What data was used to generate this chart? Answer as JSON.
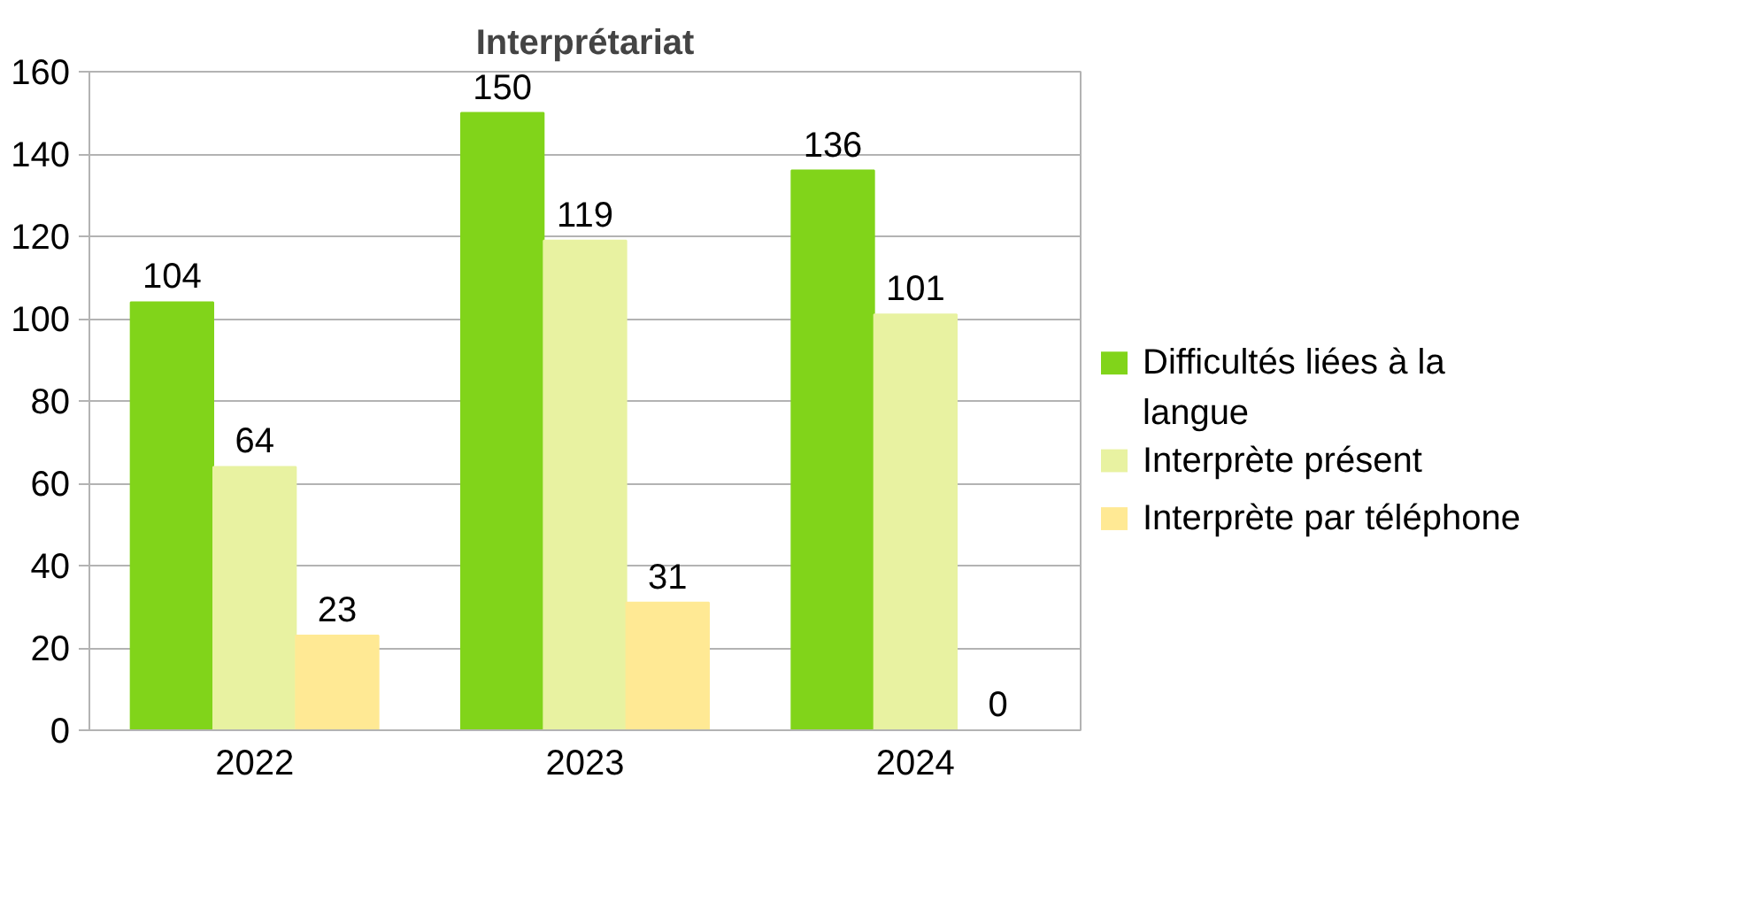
{
  "chart_data": {
    "type": "bar",
    "title": "Interprétariat",
    "categories": [
      "2022",
      "2023",
      "2024"
    ],
    "series": [
      {
        "name": "Difficultés liées à la langue",
        "color": "#81d41a",
        "values": [
          104,
          150,
          136
        ]
      },
      {
        "name": "Interprète présent",
        "color": "#e8f2a1",
        "values": [
          64,
          119,
          101
        ]
      },
      {
        "name": "Interprète par téléphone",
        "color": "#ffe994",
        "values": [
          23,
          31,
          0
        ]
      }
    ],
    "ylim": [
      0,
      160
    ],
    "yticks": [
      0,
      20,
      40,
      60,
      80,
      100,
      120,
      140,
      160
    ],
    "grid": "y",
    "legend": "right",
    "data_labels": true
  }
}
